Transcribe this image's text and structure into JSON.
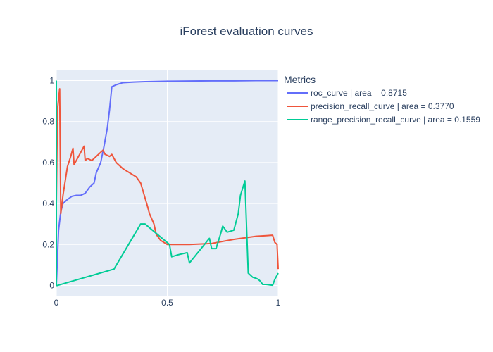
{
  "chart_data": {
    "type": "line",
    "title": "iForest evaluation curves",
    "xlabel": "",
    "ylabel": "",
    "xlim": [
      0,
      1
    ],
    "ylim": [
      -0.05,
      1.05
    ],
    "x_ticks": [
      {
        "value": 0,
        "label": "0"
      },
      {
        "value": 0.5,
        "label": "0.5"
      },
      {
        "value": 1,
        "label": "1"
      }
    ],
    "y_ticks": [
      {
        "value": 0,
        "label": "0"
      },
      {
        "value": 0.2,
        "label": "0.2"
      },
      {
        "value": 0.4,
        "label": "0.4"
      },
      {
        "value": 0.6,
        "label": "0.6"
      },
      {
        "value": 0.8,
        "label": "0.8"
      },
      {
        "value": 1,
        "label": "1"
      }
    ],
    "grid": true,
    "plot_background": "#e5ecf6",
    "legend": {
      "title": "Metrics",
      "position": "right"
    },
    "series": [
      {
        "name": "roc_curve | area = 0.8715",
        "color": "#636efa",
        "x": [
          0,
          0.01,
          0.02,
          0.03,
          0.05,
          0.07,
          0.09,
          0.11,
          0.13,
          0.15,
          0.17,
          0.18,
          0.2,
          0.215,
          0.23,
          0.24,
          0.25,
          0.27,
          0.3,
          0.35,
          0.4,
          0.5,
          0.6,
          0.7,
          0.8,
          0.9,
          1.0
        ],
        "y": [
          0,
          0.27,
          0.36,
          0.4,
          0.42,
          0.435,
          0.44,
          0.44,
          0.45,
          0.48,
          0.5,
          0.55,
          0.6,
          0.68,
          0.77,
          0.86,
          0.97,
          0.98,
          0.99,
          0.993,
          0.995,
          0.997,
          0.998,
          0.999,
          0.999,
          1.0,
          1.0
        ]
      },
      {
        "name": "precision_recall_curve | area = 0.3770",
        "color": "#ef553b",
        "x": [
          0,
          0.005,
          0.015,
          0.018,
          0.02,
          0.03,
          0.05,
          0.065,
          0.075,
          0.08,
          0.1,
          0.125,
          0.13,
          0.14,
          0.16,
          0.19,
          0.21,
          0.22,
          0.24,
          0.25,
          0.27,
          0.3,
          0.33,
          0.36,
          0.38,
          0.41,
          0.42,
          0.44,
          0.45,
          0.47,
          0.5,
          0.55,
          0.6,
          0.7,
          0.8,
          0.9,
          0.975,
          0.985,
          0.995,
          1.0
        ],
        "y": [
          0.4,
          0.86,
          0.96,
          0.6,
          0.35,
          0.44,
          0.58,
          0.63,
          0.67,
          0.59,
          0.63,
          0.68,
          0.61,
          0.62,
          0.61,
          0.64,
          0.66,
          0.64,
          0.63,
          0.64,
          0.6,
          0.57,
          0.55,
          0.53,
          0.5,
          0.39,
          0.35,
          0.3,
          0.25,
          0.22,
          0.2,
          0.2,
          0.2,
          0.205,
          0.225,
          0.24,
          0.245,
          0.21,
          0.2,
          0.08
        ]
      },
      {
        "name": "range_precision_recall_curve | area = 0.1559",
        "color": "#00cc96",
        "x": [
          0,
          0.0,
          0.005,
          0.26,
          0.38,
          0.4,
          0.51,
          0.52,
          0.55,
          0.59,
          0.6,
          0.69,
          0.7,
          0.72,
          0.74,
          0.75,
          0.77,
          0.8,
          0.82,
          0.83,
          0.85,
          0.865,
          0.885,
          0.9,
          0.91,
          0.92,
          0.93,
          0.945,
          0.96,
          0.975,
          0.985,
          1.0
        ],
        "y": [
          1.0,
          0.0,
          0.0,
          0.08,
          0.3,
          0.3,
          0.2,
          0.14,
          0.15,
          0.16,
          0.11,
          0.23,
          0.18,
          0.18,
          0.25,
          0.29,
          0.26,
          0.27,
          0.35,
          0.44,
          0.51,
          0.06,
          0.04,
          0.035,
          0.03,
          0.02,
          0.005,
          0.005,
          0.003,
          0.001,
          0.03,
          0.06
        ]
      }
    ]
  }
}
